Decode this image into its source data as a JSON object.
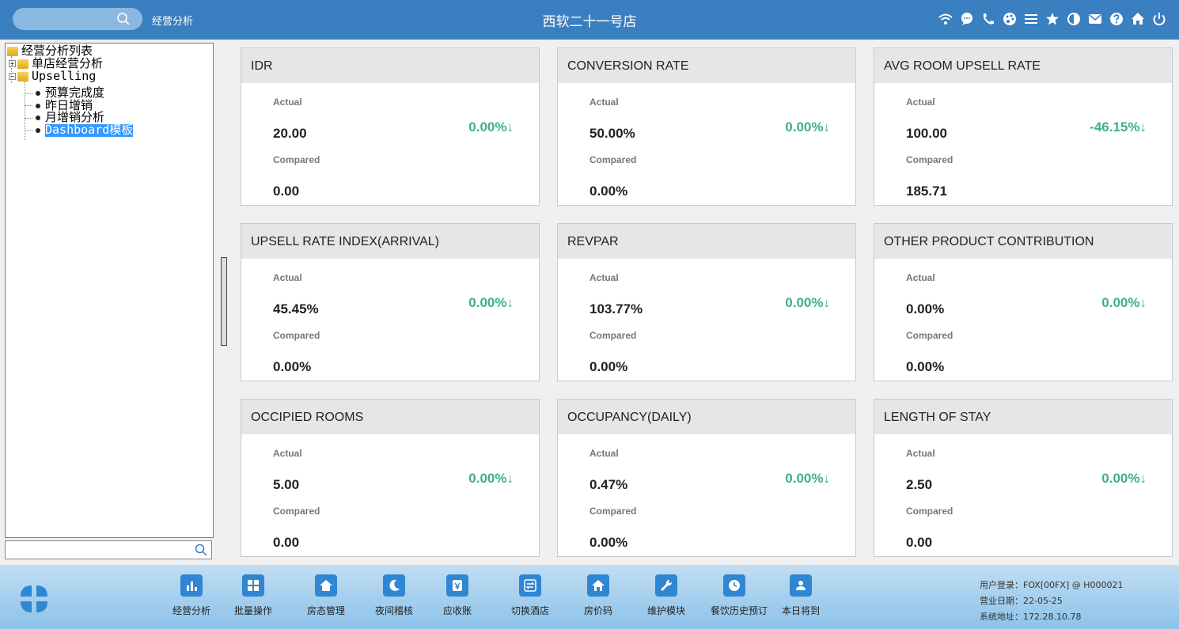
{
  "header": {
    "app_title": "经营分析",
    "store_title": "西软二十一号店",
    "icons": [
      "wifi-icon",
      "chat-icon",
      "phone-icon",
      "palette-icon",
      "menu-icon",
      "star-icon",
      "contrast-icon",
      "mail-icon",
      "help-icon",
      "home-icon",
      "power-icon"
    ]
  },
  "tree": {
    "root": "经营分析列表",
    "items": [
      {
        "label": "单店经营分析"
      },
      {
        "label": "Upselling"
      },
      {
        "label": "预算完成度"
      },
      {
        "label": "昨日增销"
      },
      {
        "label": "月增销分析"
      },
      {
        "label": "Dashboard模板"
      }
    ]
  },
  "cards": [
    {
      "title": "IDR",
      "actual_label": "Actual",
      "actual": "20.00",
      "compared_label": "Compared",
      "compared": "0.00",
      "change": "0.00%↓"
    },
    {
      "title": "CONVERSION RATE",
      "actual_label": "Actual",
      "actual": "50.00%",
      "compared_label": "Compared",
      "compared": "0.00%",
      "change": "0.00%↓"
    },
    {
      "title": "AVG ROOM UPSELL RATE",
      "actual_label": "Actual",
      "actual": "100.00",
      "compared_label": "Compared",
      "compared": "185.71",
      "change": "-46.15%↓"
    },
    {
      "title": "UPSELL RATE INDEX(ARRIVAL)",
      "actual_label": "Actual",
      "actual": "45.45%",
      "compared_label": "Compared",
      "compared": "0.00%",
      "change": "0.00%↓"
    },
    {
      "title": "REVPAR",
      "actual_label": "Actual",
      "actual": "103.77%",
      "compared_label": "Compared",
      "compared": "0.00%",
      "change": "0.00%↓"
    },
    {
      "title": "OTHER PRODUCT CONTRIBUTION",
      "actual_label": "Actual",
      "actual": "0.00%",
      "compared_label": "Compared",
      "compared": "0.00%",
      "change": "0.00%↓"
    },
    {
      "title": "OCCIPIED ROOMS",
      "actual_label": "Actual",
      "actual": "5.00",
      "compared_label": "Compared",
      "compared": "0.00",
      "change": "0.00%↓"
    },
    {
      "title": "OCCUPANCY(DAILY)",
      "actual_label": "Actual",
      "actual": "0.47%",
      "compared_label": "Compared",
      "compared": "0.00%",
      "change": "0.00%↓"
    },
    {
      "title": "LENGTH OF STAY",
      "actual_label": "Actual",
      "actual": "2.50",
      "compared_label": "Compared",
      "compared": "0.00",
      "change": "0.00%↓"
    }
  ],
  "toolbar": [
    {
      "label": "经营分析",
      "icon": "bar-chart-icon"
    },
    {
      "label": "批量操作",
      "icon": "batch-icon"
    },
    {
      "label": "房态管理",
      "icon": "house-icon"
    },
    {
      "label": "夜间稽核",
      "icon": "moon-icon"
    },
    {
      "label": "应收账",
      "icon": "receivable-icon"
    },
    {
      "label": "切换酒店",
      "icon": "switch-icon"
    },
    {
      "label": "房价码",
      "icon": "home-icon"
    },
    {
      "label": "维护模块",
      "icon": "wrench-icon"
    },
    {
      "label": "餐饮历史预订",
      "icon": "clock-icon"
    },
    {
      "label": "本日将到",
      "icon": "arrival-icon"
    }
  ],
  "sysinfo": {
    "user": "用户登录：FOX[00FX] @ H000021",
    "business_date": "营业日期：22-05-25",
    "address": "系统地址：172.28.10.78"
  },
  "colors": {
    "header": "#3a7fc0",
    "accent_green": "#3fae8c",
    "selection": "#3399ff",
    "tool_icon": "#2f86d2"
  }
}
